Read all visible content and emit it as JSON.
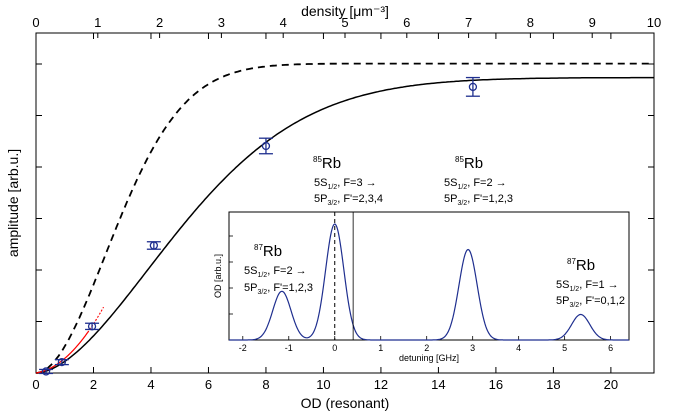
{
  "chart_data": {
    "type": "line",
    "xlabel": "OD (resonant)",
    "ylabel": "amplitude [arb.u.]",
    "top_xlabel": "density [μm⁻³]",
    "xlim": [
      0,
      21.5
    ],
    "bottom_ticks": [
      "0",
      "2",
      "4",
      "6",
      "8",
      "10",
      "12",
      "14",
      "16",
      "18",
      "20"
    ],
    "top_ticks": [
      "0",
      "1",
      "2",
      "3",
      "4",
      "5",
      "6",
      "7",
      "8",
      "9",
      "10"
    ],
    "data_points": {
      "x": [
        0.35,
        0.9,
        1.95,
        4.1,
        8.0,
        15.2
      ],
      "y": [
        0.005,
        0.035,
        0.15,
        0.41,
        0.73,
        0.92
      ],
      "yerr": [
        0.006,
        0.008,
        0.01,
        0.012,
        0.025,
        0.03
      ],
      "color": "#1f2f8f"
    },
    "curves": {
      "solid_color": "#000000",
      "dashed_color": "#000000",
      "red_color": "#ff0000"
    },
    "inset": {
      "xlabel": "detuning [GHz]",
      "ylabel": "OD [arb.u.]",
      "xticks": [
        "-2",
        "-1",
        "0",
        "1",
        "2",
        "3",
        "4",
        "5",
        "6"
      ],
      "xlim": [
        -2.3,
        6.4
      ],
      "line_color": "#1f2f8f",
      "peaks": [
        {
          "center": -1.15,
          "height": 0.42,
          "width": 0.28
        },
        {
          "center": 0.0,
          "height": 1.0,
          "width": 0.28
        },
        {
          "center": 2.9,
          "height": 0.78,
          "width": 0.28
        },
        {
          "center": 5.35,
          "height": 0.22,
          "width": 0.28
        }
      ]
    },
    "annotations": {
      "rb85": "Rb",
      "rb85_mass": "85",
      "rb87": "Rb",
      "rb87_mass": "87",
      "t1_line1_pre": "5S",
      "t1_line1_sub": "1/2",
      "t1_line1_post": ", F=3 →",
      "t1_line2_pre": "5P",
      "t1_line2_sub": "3/2",
      "t1_line2_post": ", F'=2,3,4",
      "t2_line1_pre": "5S",
      "t2_line1_sub": "1/2",
      "t2_line1_post": ", F=2 →",
      "t2_line2_pre": "5P",
      "t2_line2_sub": "3/2",
      "t2_line2_post": ", F'=1,2,3",
      "t3_line1_pre": "5S",
      "t3_line1_sub": "1/2",
      "t3_line1_post": ", F=2 →",
      "t3_line2_pre": "5P",
      "t3_line2_sub": "3/2",
      "t3_line2_post": ", F'=1,2,3",
      "t4_line1_pre": "5S",
      "t4_line1_sub": "1/2",
      "t4_line1_post": ", F=1 →",
      "t4_line2_pre": "5P",
      "t4_line2_sub": "3/2",
      "t4_line2_post": ", F'=0,1,2"
    }
  }
}
